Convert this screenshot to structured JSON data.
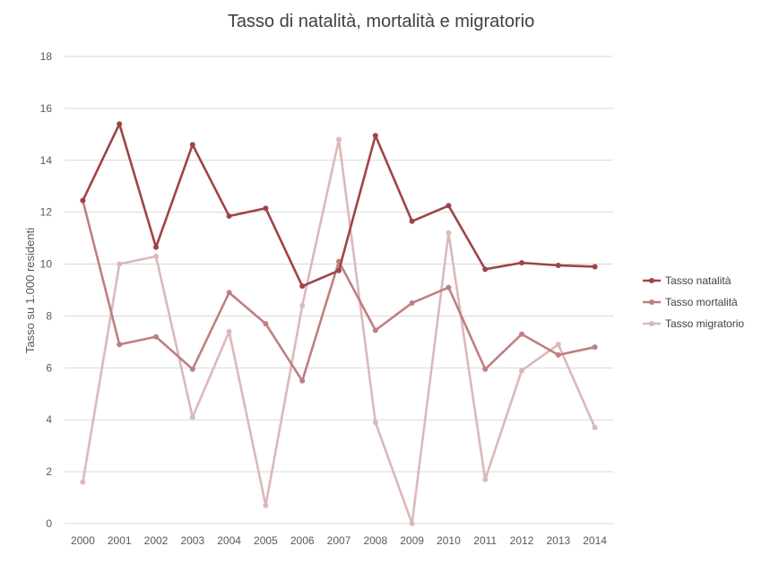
{
  "chart_data": {
    "type": "line",
    "title": "Tasso di natalità, mortalità e migratorio",
    "ylabel": "Tasso su 1.000 residenti",
    "xlabel": "",
    "ylim": [
      0,
      18
    ],
    "yticks": [
      0,
      2,
      4,
      6,
      8,
      10,
      12,
      14,
      16,
      18
    ],
    "grid": true,
    "legend_position": "right",
    "categories": [
      "2000",
      "2001",
      "2002",
      "2003",
      "2004",
      "2005",
      "2006",
      "2007",
      "2008",
      "2009",
      "2010",
      "2011",
      "2012",
      "2013",
      "2014"
    ],
    "series": [
      {
        "name": "Tasso natalità",
        "color": "#9e4446",
        "values": [
          12.45,
          15.4,
          10.65,
          14.6,
          11.85,
          12.15,
          9.15,
          9.75,
          14.95,
          11.65,
          12.25,
          9.8,
          10.05,
          9.95,
          9.9
        ]
      },
      {
        "name": "Tasso mortalità",
        "color": "#bf7f81",
        "values": [
          12.45,
          6.9,
          7.2,
          5.95,
          8.9,
          7.7,
          5.5,
          10.1,
          7.45,
          8.5,
          9.1,
          5.95,
          7.3,
          6.5,
          6.8
        ]
      },
      {
        "name": "Tasso migratorio",
        "color": "#dcb8b9",
        "values": [
          1.6,
          10.0,
          10.3,
          4.1,
          7.4,
          0.7,
          8.4,
          14.8,
          3.9,
          0.0,
          11.2,
          1.7,
          5.9,
          6.9,
          3.7
        ]
      }
    ]
  }
}
